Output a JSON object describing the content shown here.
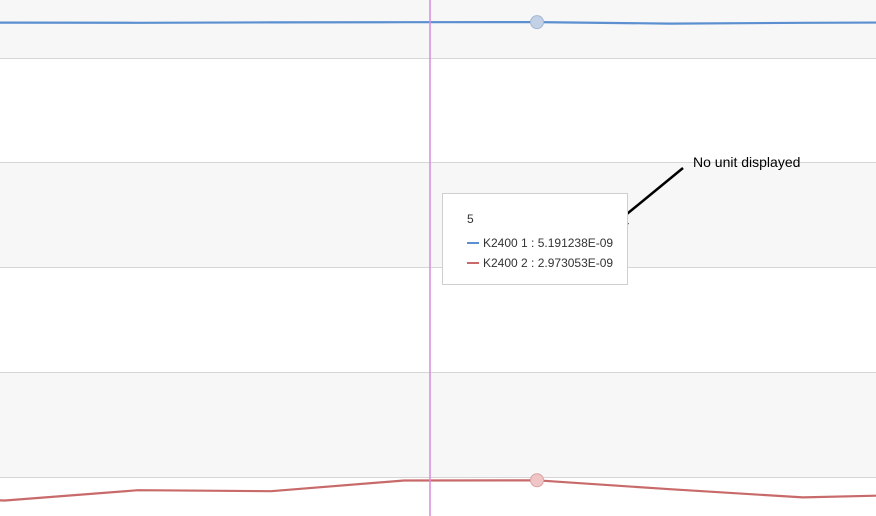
{
  "chart_data": {
    "type": "line",
    "x": [
      0,
      1,
      2,
      3,
      4,
      5,
      6,
      7,
      8,
      9
    ],
    "hover_index": 5,
    "ylim": [
      2.8e-09,
      5.25e-09
    ],
    "grid": true,
    "series": [
      {
        "name": "K2400 1",
        "color": "#5b8fd0",
        "values": [
          5.188e-09,
          5.189e-09,
          5.188e-09,
          5.19e-09,
          5.191e-09,
          5.191238e-09,
          5.184e-09,
          5.188e-09,
          5.19e-09,
          5.19e-09
        ]
      },
      {
        "name": "K2400 2",
        "color": "#c96a6a",
        "values": [
          2.89e-09,
          2.875e-09,
          2.925e-09,
          2.92e-09,
          2.972e-09,
          2.973053e-09,
          2.93e-09,
          2.89e-09,
          2.905e-09,
          2.905e-09
        ]
      }
    ]
  },
  "tooltip": {
    "title": "5",
    "rows": [
      {
        "label": "K2400 1 : 5.191238E-09",
        "color": "#5b8fd0"
      },
      {
        "label": "K2400 2 : 2.973053E-09",
        "color": "#c96a6a"
      }
    ]
  },
  "annotation": {
    "text": "No unit displayed"
  },
  "colors": {
    "crosshair": "#d98bdc",
    "band": "#f7f7f8",
    "gridline": "#d6d6d6"
  }
}
